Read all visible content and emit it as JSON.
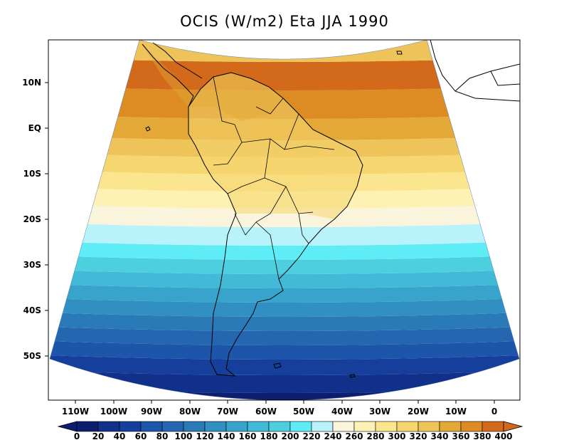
{
  "title": "OCIS (W/m2) Eta JJA 1990",
  "map": {
    "lat_ticks": [
      "10N",
      "EQ",
      "10S",
      "20S",
      "30S",
      "40S",
      "50S"
    ],
    "lon_ticks": [
      "110W",
      "100W",
      "90W",
      "80W",
      "70W",
      "60W",
      "50W",
      "40W",
      "30W",
      "20W",
      "10W",
      "0"
    ],
    "bands": [
      {
        "range": "0-20",
        "color": "#0b1f6e"
      },
      {
        "range": "20-40",
        "color": "#10308a"
      },
      {
        "range": "40-60",
        "color": "#153f9a"
      },
      {
        "range": "60-80",
        "color": "#1d55a8"
      },
      {
        "range": "80-100",
        "color": "#2467b0"
      },
      {
        "range": "100-120",
        "color": "#2a7ab8"
      },
      {
        "range": "120-140",
        "color": "#318fc2"
      },
      {
        "range": "140-160",
        "color": "#38a4cc"
      },
      {
        "range": "160-180",
        "color": "#42b9d6"
      },
      {
        "range": "180-200",
        "color": "#4ecfe0"
      },
      {
        "range": "200-220",
        "color": "#5eecf6"
      },
      {
        "range": "220-240",
        "color": "#b8f3fb"
      },
      {
        "range": "240-260",
        "color": "#fbf4dd"
      },
      {
        "range": "260-280",
        "color": "#fdf1b3"
      },
      {
        "range": "280-300",
        "color": "#fbe58f"
      },
      {
        "range": "300-320",
        "color": "#f6d66f"
      },
      {
        "range": "320-340",
        "color": "#eec45a"
      },
      {
        "range": "340-360",
        "color": "#e3a835"
      },
      {
        "range": "360-380",
        "color": "#dc8c22"
      },
      {
        "range": "380-400",
        "color": "#d2691b"
      }
    ]
  },
  "colorbar": {
    "labels": [
      "0",
      "20",
      "40",
      "60",
      "80",
      "100",
      "120",
      "140",
      "160",
      "180",
      "200",
      "220",
      "240",
      "260",
      "280",
      "300",
      "320",
      "340",
      "360",
      "380",
      "400"
    ],
    "under_color": "#0b1f6e",
    "over_color": "#d2691b"
  }
}
